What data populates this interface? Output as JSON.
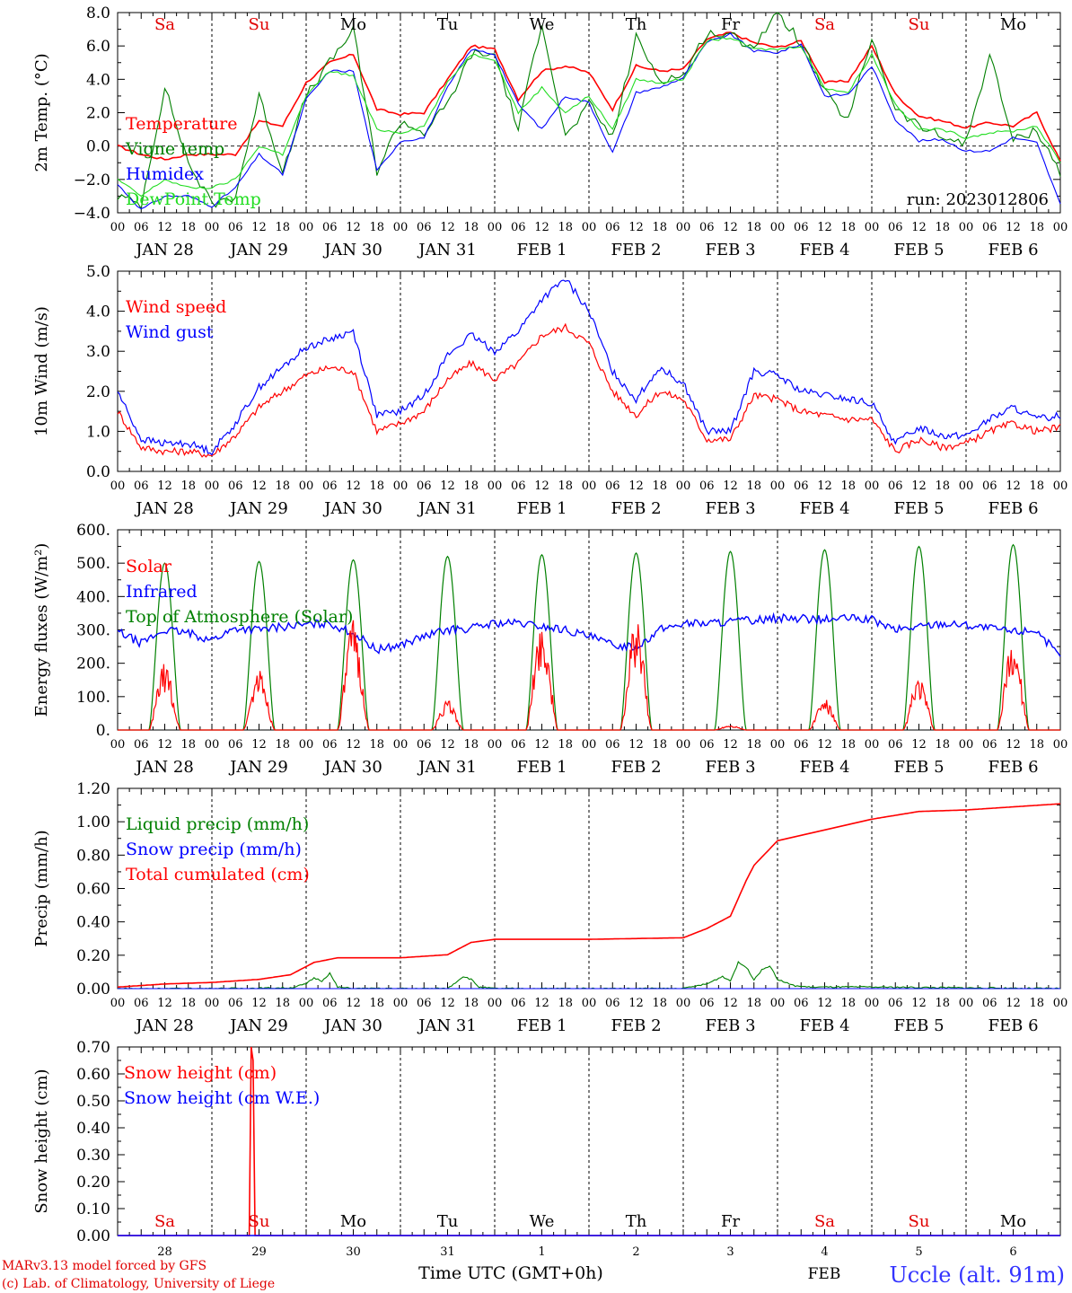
{
  "run_label": "run: 2023012806",
  "day_names": [
    {
      "label": "Sa",
      "color": "#e00000"
    },
    {
      "label": "Su",
      "color": "#e00000"
    },
    {
      "label": "Mo",
      "color": "#000000"
    },
    {
      "label": "Tu",
      "color": "#000000"
    },
    {
      "label": "We",
      "color": "#000000"
    },
    {
      "label": "Th",
      "color": "#000000"
    },
    {
      "label": "Fr",
      "color": "#000000"
    },
    {
      "label": "Sa",
      "color": "#e00000"
    },
    {
      "label": "Su",
      "color": "#e00000"
    },
    {
      "label": "Mo",
      "color": "#000000"
    }
  ],
  "date_labels": [
    "JAN 28",
    "JAN 29",
    "JAN 30",
    "JAN 31",
    "FEB  1",
    "FEB  2",
    "FEB  3",
    "FEB  4",
    "FEB  5",
    "FEB  6"
  ],
  "hour_labels": [
    "00",
    "06",
    "12",
    "18"
  ],
  "last_hour_label": "00",
  "bottom_axis": {
    "day_numbers": [
      "28",
      "29",
      "30",
      "31",
      "1",
      "2",
      "3",
      "4",
      "5",
      "6"
    ],
    "xlabel": "Time UTC (GMT+0h)",
    "month_label": "FEB"
  },
  "footer": {
    "credit_line1": "MARv3.13 model forced by GFS",
    "credit_line2": "(c) Lab. of Climatology, University of Liege",
    "station": "Uccle (alt. 91m)"
  },
  "colors": {
    "red": "#ff0000",
    "green": "#008000",
    "blue": "#0000ff",
    "lightgreen": "#22dd22",
    "station": "#3333ff"
  },
  "chart_data": [
    {
      "type": "line",
      "ylabel": "2m Temp. (°C)",
      "ylim": [
        -4,
        8
      ],
      "yticks": [
        "8.0",
        "6.0",
        "4.0",
        "2.0",
        "0.0",
        "−2.0",
        "−4.0"
      ],
      "zero_line": true,
      "x_unit": "hours since JAN 28 00 UTC",
      "series": [
        {
          "name": "Temperature",
          "color": "#ff0000",
          "x": [
            0,
            6,
            12,
            18,
            24,
            30,
            36,
            42,
            48,
            54,
            60,
            66,
            72,
            78,
            84,
            90,
            96,
            102,
            108,
            114,
            120,
            126,
            132,
            138,
            144,
            150,
            156,
            162,
            168,
            174,
            180,
            186,
            192,
            198,
            204,
            210,
            216,
            222,
            228,
            234,
            240
          ],
          "values": [
            0,
            -0.5,
            -0.8,
            -0.5,
            -0.5,
            -0.5,
            1.5,
            1.2,
            3.8,
            5,
            5.5,
            2.2,
            1.9,
            2,
            4,
            6,
            5.8,
            2.8,
            4.5,
            4.8,
            4.4,
            2.2,
            4.8,
            4.5,
            4.6,
            6.4,
            6.8,
            6.2,
            5.9,
            6.3,
            3.8,
            3.9,
            6,
            3.1,
            1.8,
            1.5,
            1.1,
            1.4,
            1.2,
            2,
            -0.9
          ]
        },
        {
          "name": "Vigne temp",
          "color": "#008000",
          "x": [
            0,
            6,
            12,
            18,
            24,
            30,
            36,
            42,
            48,
            54,
            60,
            66,
            72,
            78,
            84,
            90,
            96,
            102,
            108,
            114,
            120,
            126,
            132,
            138,
            144,
            150,
            156,
            162,
            168,
            174,
            180,
            186,
            192,
            198,
            204,
            210,
            216,
            222,
            228,
            234,
            240
          ],
          "values": [
            -3,
            -3.5,
            3.5,
            -1,
            -3.5,
            -3,
            3,
            -1.5,
            3,
            5,
            7,
            -1.5,
            1.5,
            0.8,
            2.5,
            5.5,
            5.5,
            1,
            7.5,
            0.5,
            2.5,
            0.5,
            6.5,
            4,
            4.2,
            6.8,
            6.6,
            6,
            8,
            6.2,
            3.2,
            1.5,
            6.5,
            2.2,
            1.2,
            0.5,
            0.2,
            5.5,
            0.3,
            1,
            -1.6
          ]
        },
        {
          "name": "Humidex",
          "color": "#0000ff",
          "x": [
            0,
            6,
            12,
            18,
            24,
            30,
            36,
            42,
            48,
            54,
            60,
            66,
            72,
            78,
            84,
            90,
            96,
            102,
            108,
            114,
            120,
            126,
            132,
            138,
            144,
            150,
            156,
            162,
            168,
            174,
            180,
            186,
            192,
            198,
            204,
            210,
            216,
            222,
            228,
            234,
            240
          ],
          "values": [
            -2.3,
            -3.8,
            -3,
            -3,
            -3.6,
            -2.5,
            -0.5,
            -1.7,
            2.8,
            4.5,
            4.5,
            -1.5,
            0.3,
            0.5,
            3.5,
            5.8,
            5.5,
            2.5,
            1,
            3,
            2.6,
            -0.4,
            3.2,
            3.5,
            4.1,
            6.2,
            6.7,
            5.7,
            5.6,
            6.1,
            3,
            3.1,
            4.8,
            1.6,
            0.3,
            0.4,
            -0.3,
            -0.3,
            0.5,
            0.2,
            -3.5
          ]
        },
        {
          "name": "DewPoint Temp",
          "color": "#22dd22",
          "x": [
            0,
            6,
            12,
            18,
            24,
            30,
            36,
            42,
            48,
            54,
            60,
            66,
            72,
            78,
            84,
            90,
            96,
            102,
            108,
            114,
            120,
            126,
            132,
            138,
            144,
            150,
            156,
            162,
            168,
            174,
            180,
            186,
            192,
            198,
            204,
            210,
            216,
            222,
            228,
            234,
            240
          ],
          "values": [
            -2,
            -3,
            -2,
            -2.5,
            -2.5,
            -2,
            0,
            -0.5,
            3,
            4.5,
            4.2,
            1,
            0.8,
            1.2,
            3.8,
            5.5,
            5.2,
            2,
            3.5,
            2,
            3,
            1,
            4,
            3.8,
            4,
            6.3,
            6.5,
            5.8,
            5.8,
            6,
            3.5,
            3.2,
            5.5,
            2.5,
            1,
            1,
            0.5,
            0.8,
            0.9,
            1.2,
            -1
          ]
        }
      ]
    },
    {
      "type": "line",
      "ylabel": "10m Wind (m/s)",
      "ylim": [
        0,
        5
      ],
      "yticks": [
        "5.0",
        "4.0",
        "3.0",
        "2.0",
        "1.0",
        "0.0"
      ],
      "x_unit": "hours since JAN 28 00 UTC",
      "series": [
        {
          "name": "Wind speed",
          "color": "#ff0000",
          "x": [
            0,
            6,
            12,
            18,
            24,
            30,
            36,
            42,
            48,
            54,
            60,
            66,
            72,
            78,
            84,
            90,
            96,
            102,
            108,
            114,
            120,
            126,
            132,
            138,
            144,
            150,
            156,
            162,
            168,
            174,
            180,
            186,
            192,
            198,
            204,
            210,
            216,
            222,
            228,
            234,
            240
          ],
          "values": [
            1.5,
            0.6,
            0.5,
            0.5,
            0.4,
            0.9,
            1.6,
            2,
            2.4,
            2.6,
            2.5,
            1,
            1.2,
            1.5,
            2.3,
            2.7,
            2.3,
            2.7,
            3.4,
            3.6,
            3.2,
            2,
            1.4,
            2,
            1.8,
            0.8,
            0.8,
            1.9,
            1.8,
            1.5,
            1.4,
            1.3,
            1.3,
            0.5,
            0.8,
            0.6,
            0.7,
            1,
            1.2,
            1,
            1.1
          ]
        },
        {
          "name": "Wind gust",
          "color": "#0000ff",
          "x": [
            0,
            6,
            12,
            18,
            24,
            30,
            36,
            42,
            48,
            54,
            60,
            66,
            72,
            78,
            84,
            90,
            96,
            102,
            108,
            114,
            120,
            126,
            132,
            138,
            144,
            150,
            156,
            162,
            168,
            174,
            180,
            186,
            192,
            198,
            204,
            210,
            216,
            222,
            228,
            234,
            240
          ],
          "values": [
            2,
            0.8,
            0.7,
            0.7,
            0.5,
            1.2,
            2.1,
            2.6,
            3.1,
            3.3,
            3.5,
            1.4,
            1.5,
            1.9,
            2.9,
            3.4,
            3,
            3.5,
            4.3,
            4.8,
            4,
            2.5,
            1.8,
            2.6,
            2.2,
            1,
            1,
            2.5,
            2.4,
            2,
            1.9,
            1.8,
            1.7,
            0.7,
            1.1,
            0.9,
            0.9,
            1.3,
            1.6,
            1.3,
            1.4
          ]
        }
      ]
    },
    {
      "type": "line",
      "ylabel": "Energy fluxes (W/m²)",
      "ylim": [
        0,
        600
      ],
      "yticks": [
        "600.",
        "500.",
        "400.",
        "300.",
        "200.",
        "100.",
        "0."
      ],
      "x_unit": "hours since JAN 28 00 UTC",
      "daylight_hours": [
        8,
        16
      ],
      "series": [
        {
          "name": "Solar",
          "color": "#ff0000",
          "daily_peaks": [
            200,
            185,
            330,
            90,
            330,
            330,
            15,
            95,
            160,
            280
          ]
        },
        {
          "name": "Infrared",
          "color": "#0000ff",
          "x": [
            0,
            6,
            12,
            18,
            24,
            30,
            36,
            42,
            48,
            54,
            60,
            66,
            72,
            78,
            84,
            90,
            96,
            102,
            108,
            114,
            120,
            126,
            132,
            138,
            144,
            150,
            156,
            162,
            168,
            174,
            180,
            186,
            192,
            198,
            204,
            210,
            216,
            222,
            228,
            234,
            240
          ],
          "values": [
            295,
            260,
            300,
            290,
            270,
            305,
            300,
            310,
            315,
            320,
            290,
            240,
            255,
            280,
            300,
            305,
            320,
            320,
            310,
            300,
            280,
            255,
            250,
            300,
            320,
            320,
            325,
            330,
            335,
            335,
            330,
            335,
            330,
            300,
            310,
            320,
            315,
            305,
            295,
            300,
            215
          ]
        },
        {
          "name": "Top of Atmosphere (Solar)",
          "color": "#008000",
          "daily_peaks": [
            500,
            505,
            510,
            520,
            525,
            530,
            535,
            540,
            550,
            555
          ]
        }
      ]
    },
    {
      "type": "line",
      "ylabel": "Precip (mm/h)",
      "ylim": [
        0,
        1.3
      ],
      "yticks": [
        "1.20",
        "1.00",
        "0.80",
        "0.60",
        "0.40",
        "0.20",
        "0.00"
      ],
      "x_unit": "hours since JAN 28 00 UTC",
      "series": [
        {
          "name": "Liquid precip (mm/h)",
          "color": "#008000",
          "x": [
            0,
            24,
            44,
            48,
            50,
            52,
            54,
            56,
            60,
            72,
            84,
            88,
            90,
            92,
            96,
            120,
            144,
            150,
            154,
            156,
            158,
            160,
            162,
            164,
            166,
            168,
            172,
            176,
            180,
            192,
            216,
            240
          ],
          "values": [
            0,
            0,
            0.005,
            0.03,
            0.07,
            0.05,
            0.1,
            0.01,
            0,
            0,
            0,
            0.08,
            0.06,
            0.01,
            0,
            0,
            0,
            0.03,
            0.08,
            0.05,
            0.17,
            0.14,
            0.06,
            0.12,
            0.15,
            0.06,
            0.02,
            0.01,
            0.01,
            0.01,
            0.005,
            0
          ]
        },
        {
          "name": "Snow precip (mm/h)",
          "color": "#0000ff",
          "x": [
            0,
            240
          ],
          "values": [
            0,
            0
          ]
        },
        {
          "name": "Total cumulated (cm)",
          "color": "#ff0000",
          "x": [
            0,
            12,
            24,
            36,
            44,
            50,
            56,
            72,
            84,
            90,
            96,
            120,
            144,
            150,
            156,
            160,
            162,
            168,
            180,
            192,
            204,
            216,
            240
          ],
          "values": [
            0.01,
            0.03,
            0.04,
            0.06,
            0.09,
            0.17,
            0.2,
            0.2,
            0.22,
            0.3,
            0.32,
            0.32,
            0.33,
            0.39,
            0.47,
            0.7,
            0.8,
            0.96,
            1.03,
            1.1,
            1.15,
            1.16,
            1.2
          ]
        }
      ]
    },
    {
      "type": "line",
      "ylabel": "Snow height (cm)",
      "ylim": [
        0,
        0.7
      ],
      "yticks": [
        "0.70",
        "0.60",
        "0.50",
        "0.40",
        "0.30",
        "0.20",
        "0.10",
        "0.00"
      ],
      "x_unit": "hours since JAN 28 00 UTC",
      "series": [
        {
          "name": "Snow height (cm)",
          "color": "#ff0000",
          "x": [
            0,
            33.5,
            34,
            34.5,
            35,
            240
          ],
          "values": [
            0,
            0,
            0.7,
            0.65,
            0,
            0
          ]
        },
        {
          "name": "Snow height (cm W.E.)",
          "color": "#0000ff",
          "x": [
            0,
            240
          ],
          "values": [
            0,
            0
          ]
        }
      ]
    }
  ]
}
